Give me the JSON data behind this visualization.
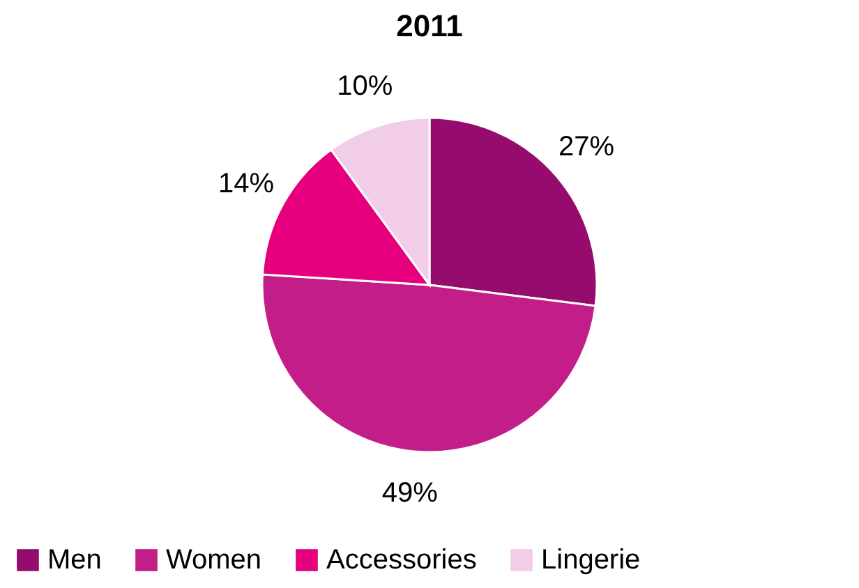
{
  "chart_data": {
    "type": "pie",
    "title": "2011",
    "categories": [
      "Men",
      "Women",
      "Accessories",
      "Lingerie"
    ],
    "values": [
      27,
      49,
      14,
      10
    ],
    "colors": [
      "#950c6e",
      "#c21d88",
      "#e6007e",
      "#f2cdea"
    ],
    "value_labels": [
      "27%",
      "49%",
      "14%",
      "10%"
    ],
    "legend": "bottom"
  }
}
